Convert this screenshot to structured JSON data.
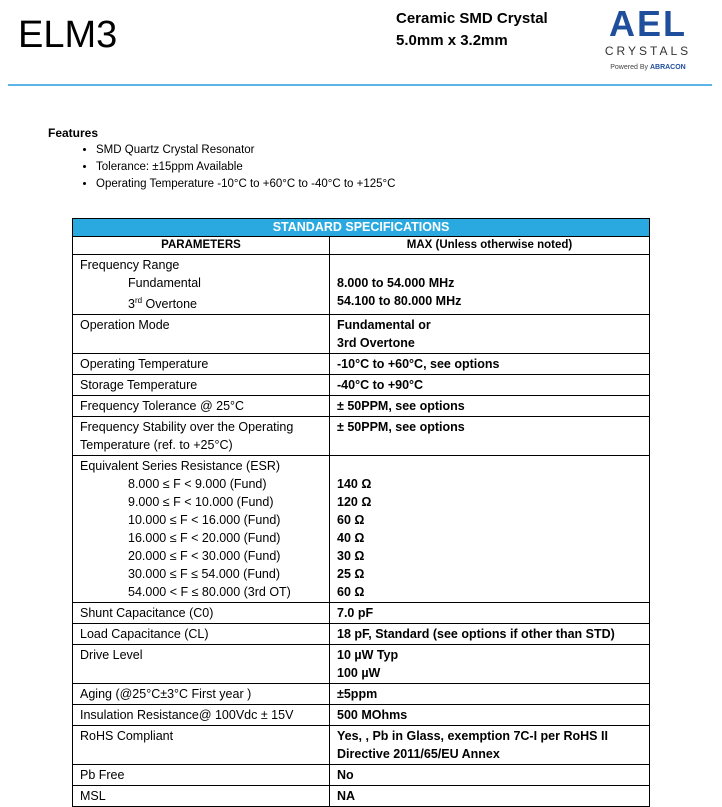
{
  "header": {
    "title": "ELM3",
    "subtitle_line1": "Ceramic SMD Crystal",
    "subtitle_line2": "5.0mm x 3.2mm",
    "logo_main": "AEL",
    "logo_sub": "CRYSTALS",
    "logo_powered": "Powered By",
    "logo_brand": "ABRACON"
  },
  "features": {
    "heading": "Features",
    "items": [
      "SMD Quartz Crystal Resonator",
      "Tolerance: ±15ppm Available",
      "Operating Temperature -10°C to +60°C to -40°C to +125°C"
    ]
  },
  "table": {
    "title": "STANDARD SPECIFICATIONS",
    "col_param": "PARAMETERS",
    "col_max": "MAX (Unless otherwise noted)",
    "rows": [
      {
        "left": [
          "Frequency Range",
          "Fundamental",
          "3rd Overtone"
        ],
        "right": [
          "",
          "8.000 to 54.000 MHz",
          "54.100 to 80.000 MHz"
        ]
      },
      {
        "left": [
          "Operation Mode"
        ],
        "right": [
          "Fundamental or",
          "3rd Overtone"
        ]
      },
      {
        "left": [
          "Operating Temperature"
        ],
        "right": [
          "-10°C to +60°C, see options"
        ]
      },
      {
        "left": [
          "Storage Temperature"
        ],
        "right": [
          "-40°C to +90°C"
        ]
      },
      {
        "left": [
          "Frequency Tolerance @ 25°C"
        ],
        "right": [
          "± 50PPM, see options"
        ]
      },
      {
        "left": [
          "Frequency Stability over the Operating",
          "Temperature (ref. to +25°C)"
        ],
        "right": [
          "± 50PPM, see options"
        ]
      },
      {
        "left": [
          "Equivalent Series Resistance (ESR)",
          "8.000 ≤ F < 9.000 (Fund)",
          "9.000 ≤ F < 10.000 (Fund)",
          "10.000 ≤ F < 16.000 (Fund)",
          "16.000 ≤ F < 20.000 (Fund)",
          "20.000 ≤ F < 30.000 (Fund)",
          "30.000 ≤ F ≤ 54.000 (Fund)",
          "54.000 < F ≤ 80.000 (3rd OT)"
        ],
        "right": [
          "",
          "140 Ω",
          "120 Ω",
          "60 Ω",
          "40 Ω",
          "30 Ω",
          "25 Ω",
          "60 Ω"
        ]
      },
      {
        "left": [
          "Shunt Capacitance (C0)"
        ],
        "right": [
          "7.0 pF"
        ]
      },
      {
        "left": [
          "Load Capacitance (CL)"
        ],
        "right": [
          "18 pF, Standard (see options if other than STD)"
        ]
      },
      {
        "left": [
          "Drive Level"
        ],
        "right": [
          "10 µW Typ",
          "100  µW"
        ]
      },
      {
        "left": [
          "Aging (@25°C±3°C First year )"
        ],
        "right": [
          "±5ppm"
        ]
      },
      {
        "left": [
          "Insulation Resistance@ 100Vdc ± 15V"
        ],
        "right": [
          "500 MOhms"
        ]
      },
      {
        "left": [
          "RoHS Compliant"
        ],
        "right": [
          "Yes, , Pb in Glass, exemption 7C-I per RoHS II",
          "Directive 2011/65/EU Annex"
        ]
      },
      {
        "left": [
          "Pb Free"
        ],
        "right": [
          "No"
        ]
      },
      {
        "left": [
          "MSL"
        ],
        "right": [
          "NA"
        ]
      }
    ]
  },
  "colors": {
    "accent": "#29a9e0",
    "logo": "#1f4e9c"
  }
}
